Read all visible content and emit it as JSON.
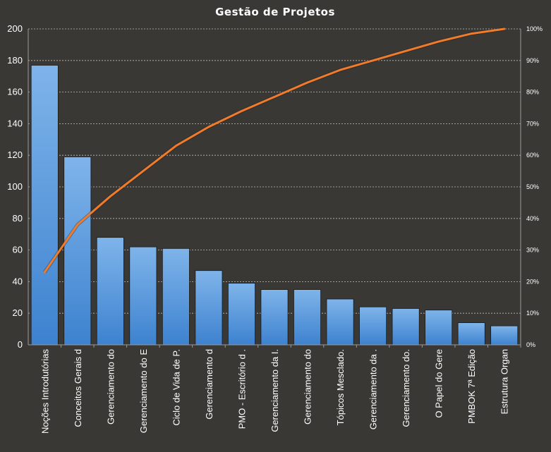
{
  "chart_data": {
    "type": "bar",
    "title": "Gestão de Projetos",
    "categories": [
      "Noções Introdutórias",
      "Conceitos Gerais d",
      "Gerenciamento do",
      "Gerenciamento do E",
      "Ciclo de Vida de P.",
      "Gerenciamento d",
      "PMO - Escritório d .",
      "Gerenciamento da I.",
      "Gerenciamento do",
      "Tópicos Mesclado.",
      "Gerenciamento da .",
      "Gerenciamento do.",
      "O Papel do Gere",
      "PMBOK 7ª Edição",
      "Estrutura Organ"
    ],
    "series": [
      {
        "type": "bar",
        "axis": "left",
        "values": [
          177,
          119,
          68,
          62,
          61,
          47,
          39,
          35,
          35,
          29,
          24,
          23,
          22,
          14,
          12
        ]
      },
      {
        "type": "line",
        "axis": "right",
        "values": [
          23,
          38,
          47,
          55,
          63,
          69,
          74,
          78.5,
          83,
          87,
          90,
          93,
          96,
          98.5,
          100
        ]
      }
    ],
    "ylim": [
      0,
      200
    ],
    "yticks": [
      "0",
      "20",
      "40",
      "60",
      "80",
      "100",
      "120",
      "140",
      "160",
      "180",
      "200"
    ],
    "y2lim": [
      0,
      100
    ],
    "y2ticks": [
      "0%",
      "10%",
      "20%",
      "30%",
      "40%",
      "50%",
      "60%",
      "70%",
      "80%",
      "90%",
      "100%"
    ],
    "grid": true,
    "colors": {
      "background": "#3a3835",
      "bar": "#4a90d9",
      "bar_light": "#7fb4ea",
      "line": "#f07b2b",
      "text": "#ffffff"
    }
  }
}
